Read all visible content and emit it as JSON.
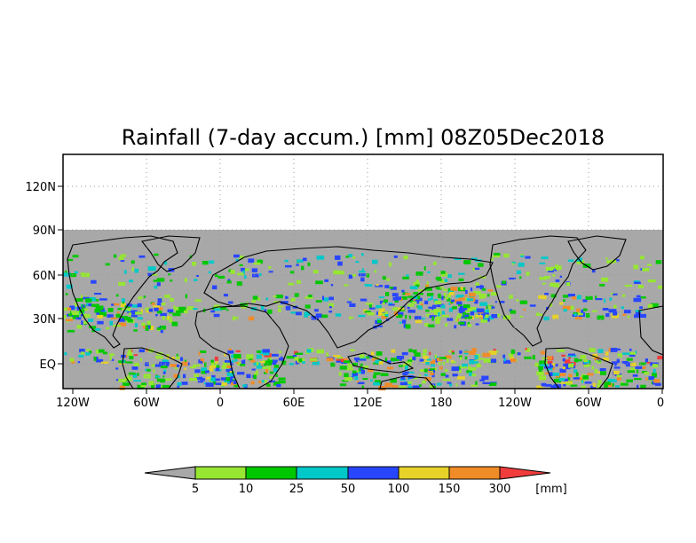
{
  "title": "Rainfall (7-day accum.) [mm] 08Z05Dec2018",
  "y_ticks": [
    "120N",
    "90N",
    "60N",
    "30N",
    "EQ"
  ],
  "x_ticks": [
    "120W",
    "60W",
    "0",
    "60E",
    "120E",
    "180",
    "120W",
    "60W",
    "0"
  ],
  "colorbar": {
    "units": "[mm]",
    "labels": [
      "5",
      "10",
      "25",
      "50",
      "100",
      "150",
      "300"
    ],
    "colors": [
      "#a8a8a8",
      "#96e632",
      "#00c800",
      "#00c8c8",
      "#2846ff",
      "#e6d228",
      "#f08c28",
      "#f03c3c"
    ]
  },
  "map": {
    "no_data_color": "#a8a8a8",
    "background_color": "#ffffff",
    "grid": "dotted",
    "rain_colors": [
      "#96e632",
      "#00c800",
      "#00c8c8",
      "#2846ff",
      "#e6d228",
      "#f08c28",
      "#f03c3c"
    ]
  }
}
